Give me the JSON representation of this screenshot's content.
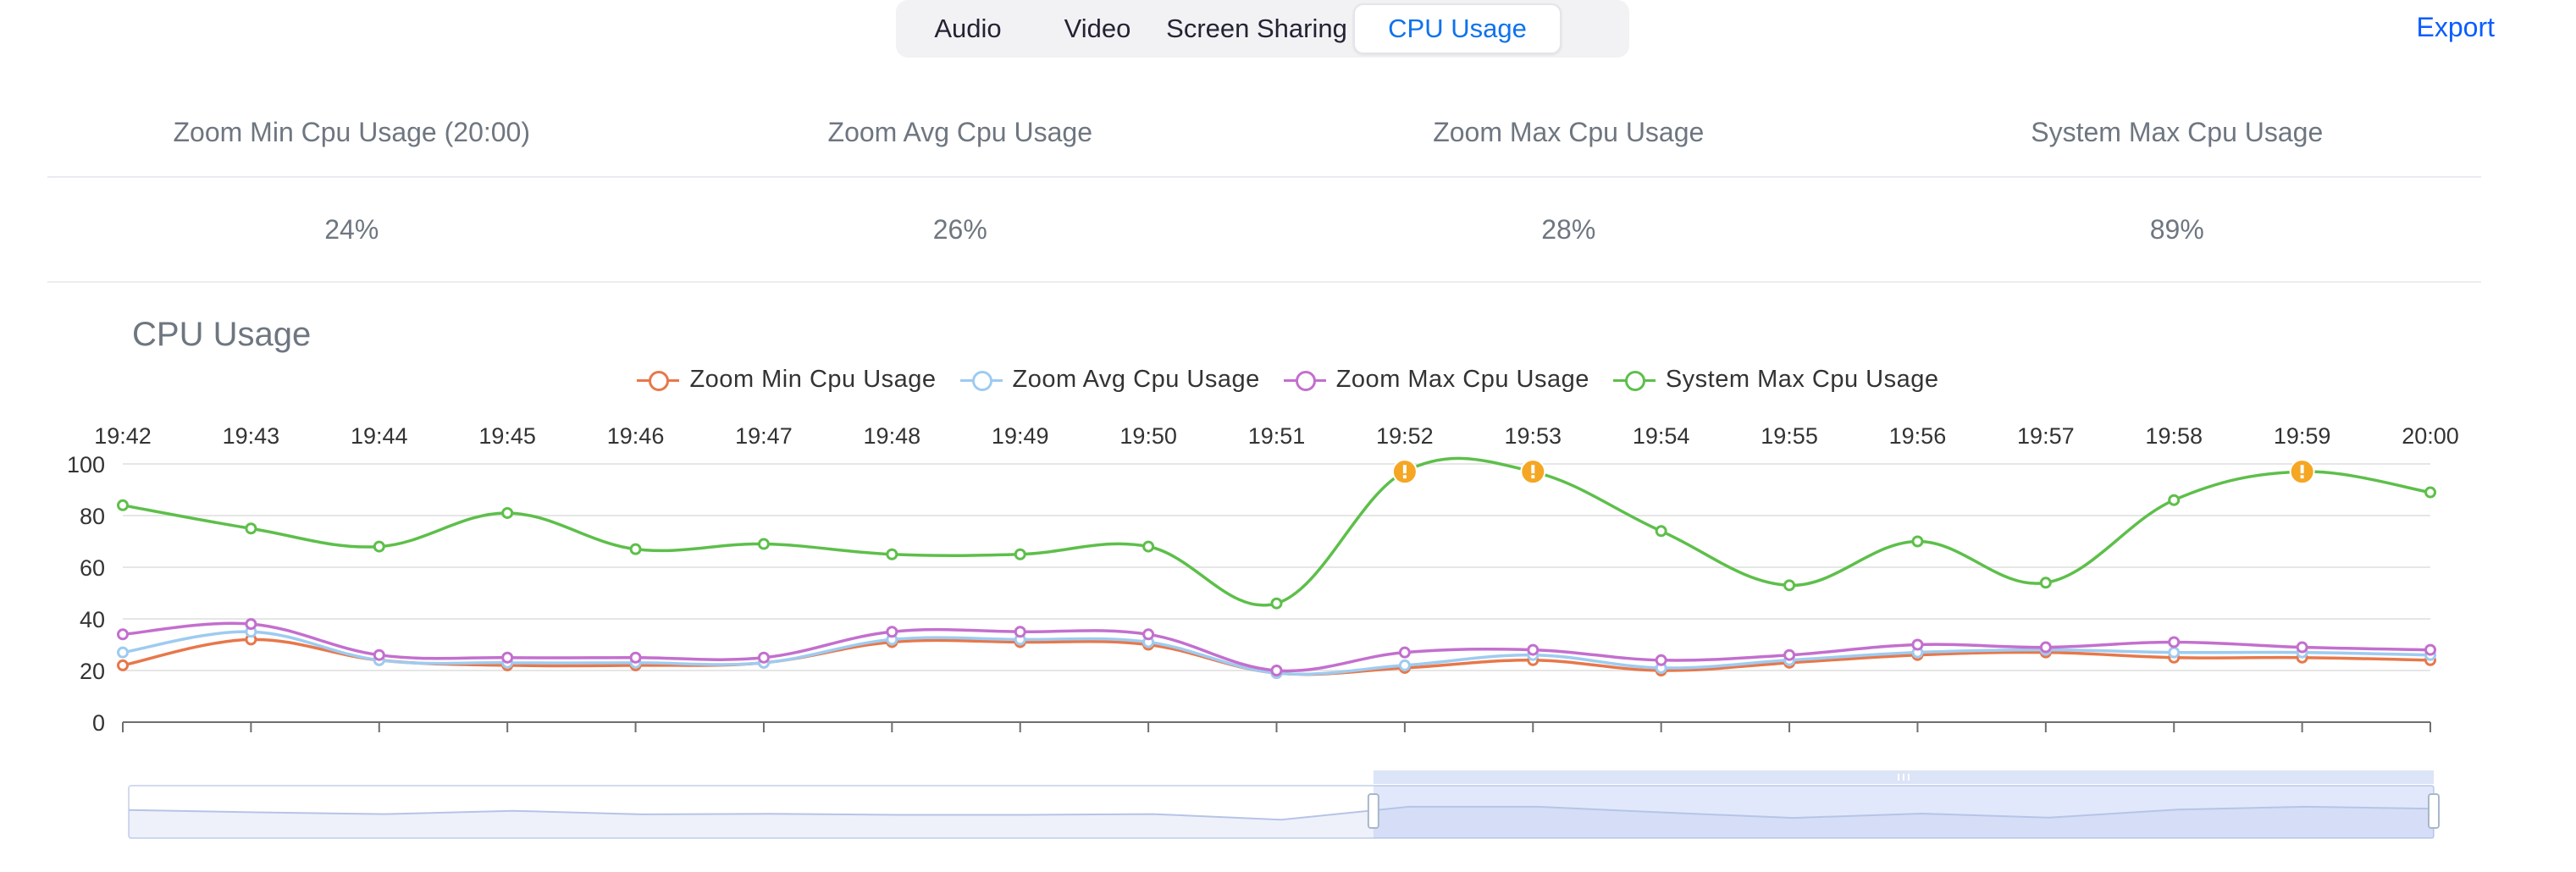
{
  "tabs": [
    {
      "label": "Audio",
      "active": false
    },
    {
      "label": "Video",
      "active": false
    },
    {
      "label": "Screen Sharing",
      "active": false
    },
    {
      "label": "CPU Usage",
      "active": true
    }
  ],
  "export_label": "Export",
  "summary": {
    "headers": [
      "Zoom Min Cpu Usage (20:00)",
      "Zoom Avg Cpu Usage",
      "Zoom Max Cpu Usage",
      "System Max Cpu Usage"
    ],
    "values": [
      "24%",
      "26%",
      "28%",
      "89%"
    ]
  },
  "colors": {
    "min": "#e8774a",
    "avg": "#9ecbf0",
    "max": "#c36fce",
    "system": "#5dbf4a",
    "warning": "#f5a623",
    "accent": "#0e72ed"
  },
  "chart_data": {
    "type": "line",
    "title": "CPU Usage",
    "x": [
      "19:42",
      "19:43",
      "19:44",
      "19:45",
      "19:46",
      "19:47",
      "19:48",
      "19:49",
      "19:50",
      "19:51",
      "19:52",
      "19:53",
      "19:54",
      "19:55",
      "19:56",
      "19:57",
      "19:58",
      "19:59",
      "20:00"
    ],
    "ylim": [
      0,
      100
    ],
    "yticks": [
      0,
      20,
      40,
      60,
      80,
      100
    ],
    "legend_position": "top-center",
    "series": [
      {
        "name": "Zoom Min Cpu Usage",
        "color": "#e8774a",
        "values": [
          22,
          32,
          24,
          22,
          22,
          23,
          31,
          31,
          30,
          19,
          21,
          24,
          20,
          23,
          26,
          27,
          25,
          25,
          24
        ]
      },
      {
        "name": "Zoom Avg Cpu Usage",
        "color": "#9ecbf0",
        "values": [
          27,
          35,
          24,
          23,
          23,
          23,
          32,
          32,
          31,
          19,
          22,
          26,
          21,
          24,
          27,
          28,
          27,
          27,
          26
        ]
      },
      {
        "name": "Zoom Max Cpu Usage",
        "color": "#c36fce",
        "values": [
          34,
          38,
          26,
          25,
          25,
          25,
          35,
          35,
          34,
          20,
          27,
          28,
          24,
          26,
          30,
          29,
          31,
          29,
          28
        ]
      },
      {
        "name": "System Max Cpu Usage",
        "color": "#5dbf4a",
        "values": [
          84,
          75,
          68,
          81,
          67,
          69,
          65,
          65,
          68,
          46,
          97,
          97,
          74,
          53,
          70,
          54,
          86,
          97,
          89
        ]
      }
    ],
    "warnings_at": [
      "19:52",
      "19:53",
      "19:59"
    ],
    "zoom_range_fraction": [
      0.54,
      1.0
    ]
  }
}
